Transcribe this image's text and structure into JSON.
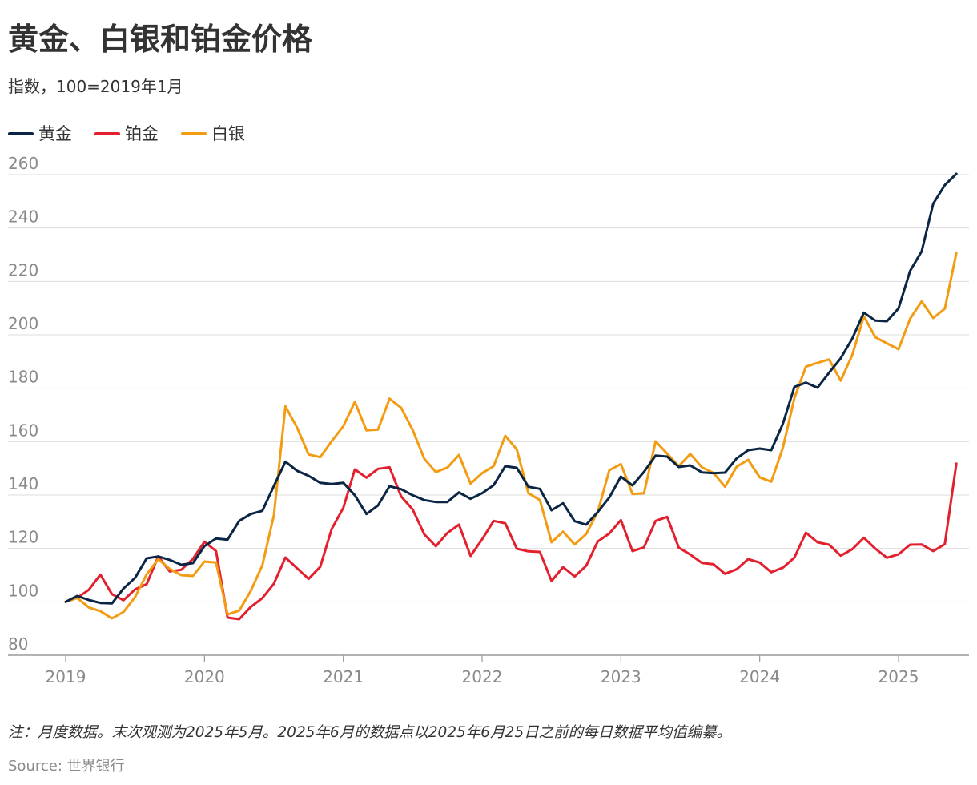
{
  "chart_data": {
    "type": "line",
    "title": "黄金、白银和铂金价格",
    "subtitle": "指数，100=2019年1月",
    "note": "注：月度数据。末次观测为2025年5月。2025年6月的数据点以2025年6月25日之前的每日数据平均值编纂。",
    "source": "Source: 世界银行",
    "xlabel": "",
    "ylabel": "",
    "ylim": [
      80,
      260
    ],
    "yticks": [
      80,
      100,
      120,
      140,
      160,
      180,
      200,
      220,
      240,
      260
    ],
    "xlim": [
      2019,
      2025.5
    ],
    "xticks": [
      {
        "value": 2019,
        "label": "2019"
      },
      {
        "value": 2020,
        "label": "2020"
      },
      {
        "value": 2021,
        "label": "2021"
      },
      {
        "value": 2022,
        "label": "2022"
      },
      {
        "value": 2023,
        "label": "2023"
      },
      {
        "value": 2024,
        "label": "2024"
      },
      {
        "value": 2025,
        "label": "2025"
      }
    ],
    "grid": true,
    "legend_position": "top-left",
    "start": "2019-01",
    "frequency": "monthly",
    "series": [
      {
        "name": "黄金",
        "color": "#0b2545",
        "values": [
          100.0,
          102.2,
          100.7,
          99.6,
          99.4,
          105.0,
          109.0,
          116.3,
          117.0,
          115.7,
          113.9,
          114.5,
          120.9,
          123.7,
          123.3,
          130.3,
          132.9,
          134.1,
          143.4,
          152.5,
          149.1,
          147.2,
          144.6,
          144.1,
          144.6,
          139.9,
          132.9,
          136.1,
          143.3,
          142.2,
          139.9,
          138.1,
          137.4,
          137.4,
          141.0,
          138.6,
          140.7,
          143.7,
          150.8,
          150.2,
          143.1,
          142.3,
          134.3,
          136.9,
          130.2,
          128.9,
          133.6,
          139.1,
          146.9,
          143.6,
          148.7,
          154.8,
          154.4,
          150.5,
          151.1,
          148.5,
          148.2,
          148.4,
          153.7,
          156.8,
          157.4,
          156.8,
          166.7,
          180.5,
          182.1,
          180.2,
          185.8,
          191.2,
          198.6,
          208.3,
          205.3,
          205.1,
          209.9,
          223.9,
          231.3,
          249.1,
          256.1,
          260.3
        ]
      },
      {
        "name": "铂金",
        "color": "#e3202e",
        "values": [
          100.0,
          101.5,
          104.5,
          110.2,
          102.9,
          100.6,
          104.7,
          106.6,
          117.0,
          111.4,
          112.0,
          116.1,
          122.5,
          119.0,
          94.1,
          93.5,
          98.1,
          101.4,
          106.8,
          116.6,
          112.6,
          108.6,
          113.1,
          127.3,
          135.2,
          149.6,
          146.5,
          149.8,
          150.4,
          139.5,
          134.6,
          125.3,
          120.8,
          125.8,
          128.9,
          117.2,
          123.4,
          130.3,
          129.4,
          119.9,
          118.9,
          118.7,
          107.8,
          113.0,
          109.5,
          113.5,
          122.6,
          125.6,
          130.6,
          119.0,
          120.4,
          130.3,
          131.8,
          120.3,
          117.7,
          114.6,
          114.1,
          110.5,
          112.2,
          116.0,
          114.7,
          111.1,
          112.8,
          116.6,
          125.9,
          122.3,
          121.4,
          117.3,
          119.7,
          124.0,
          119.9,
          116.5,
          117.8,
          121.4,
          121.5,
          119.0,
          121.6,
          151.8
        ]
      },
      {
        "name": "白银",
        "color": "#f39c12",
        "values": [
          100.0,
          101.5,
          97.9,
          96.5,
          93.8,
          96.2,
          101.8,
          110.3,
          116.0,
          112.3,
          110.0,
          109.7,
          115.1,
          114.7,
          95.3,
          96.7,
          104.1,
          113.7,
          132.4,
          173.2,
          165.3,
          155.2,
          154.2,
          160.2,
          165.8,
          174.9,
          164.2,
          164.5,
          176.1,
          172.7,
          164.4,
          153.6,
          148.6,
          150.3,
          155.0,
          144.3,
          148.2,
          150.8,
          162.2,
          157.1,
          140.7,
          138.1,
          122.3,
          126.3,
          121.5,
          125.4,
          133.7,
          149.3,
          151.6,
          140.4,
          140.7,
          160.1,
          155.5,
          150.8,
          155.4,
          150.4,
          148.3,
          143.1,
          150.6,
          153.2,
          146.6,
          145.0,
          157.7,
          176.3,
          188.1,
          189.5,
          190.8,
          182.8,
          192.4,
          206.9,
          199.1,
          196.8,
          194.6,
          206.0,
          212.5,
          206.3,
          209.8,
          230.7
        ]
      }
    ]
  }
}
